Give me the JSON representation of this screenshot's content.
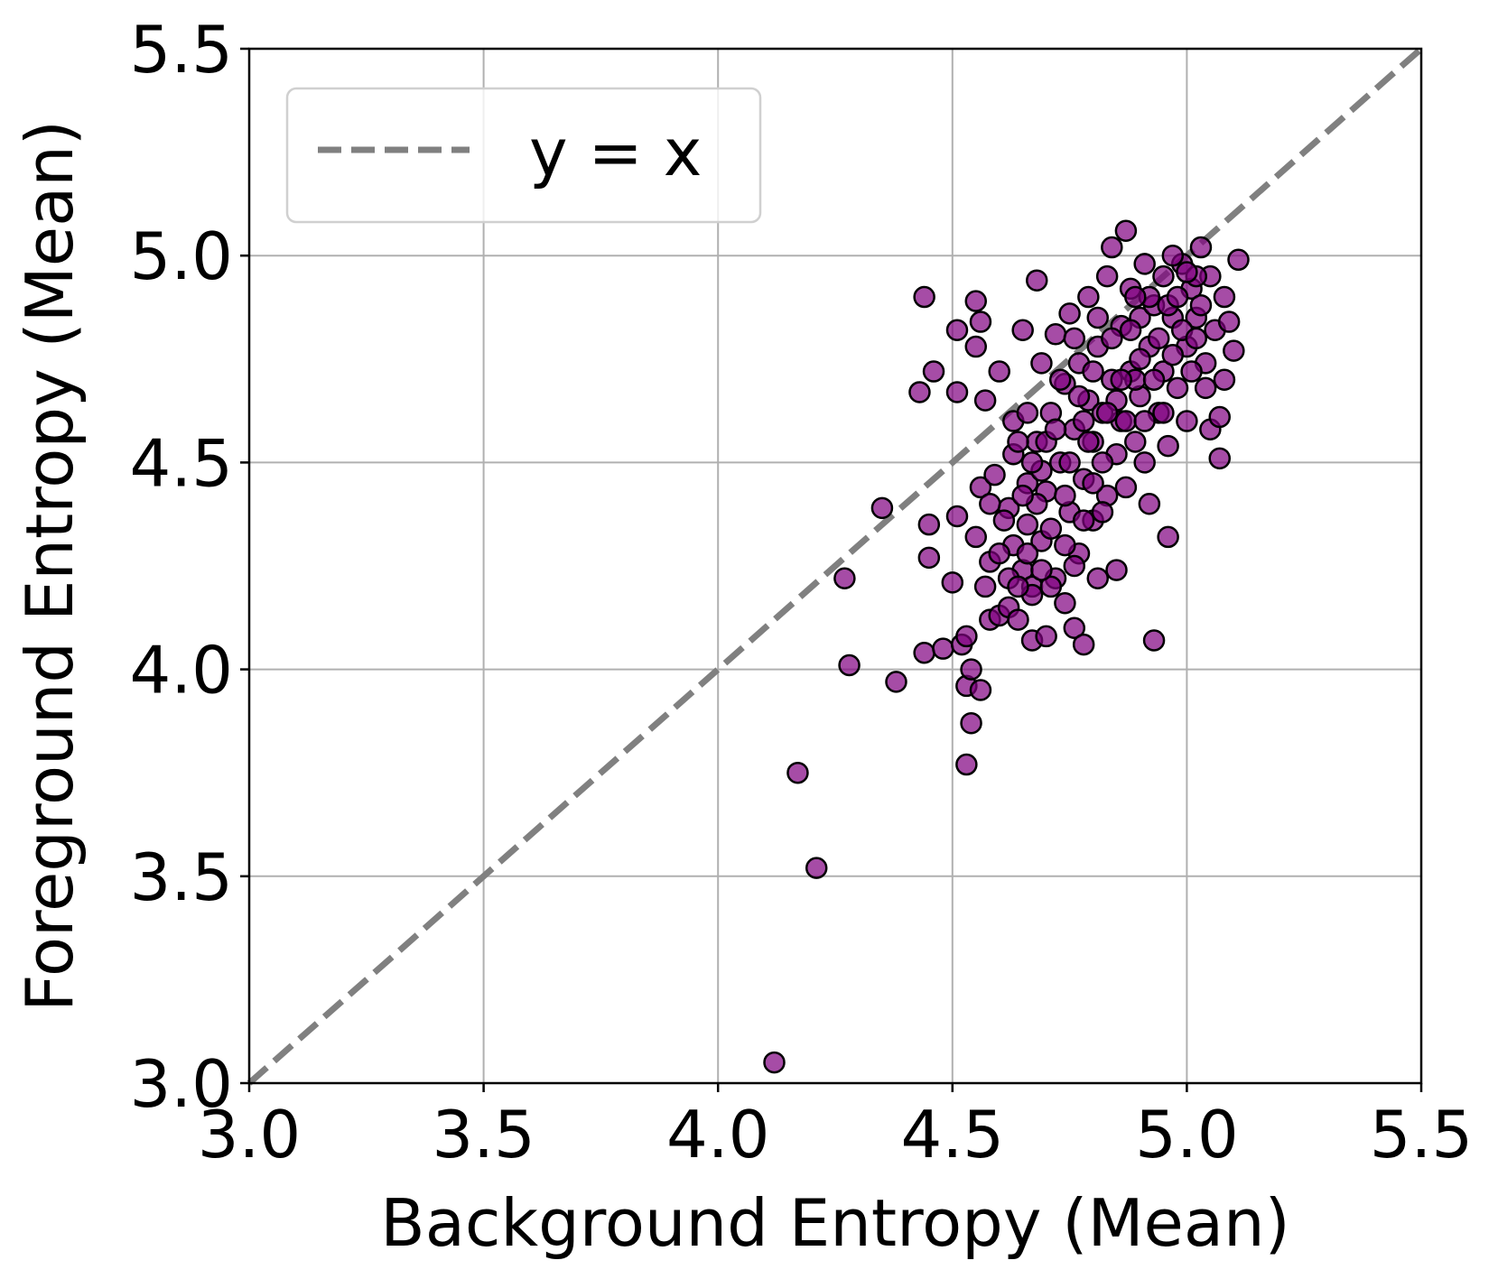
{
  "chart_data": {
    "type": "scatter",
    "title": "",
    "xlabel": "Background Entropy (Mean)",
    "ylabel": "Foreground Entropy (Mean)",
    "xlim": [
      3.0,
      5.5
    ],
    "ylim": [
      3.0,
      5.5
    ],
    "xticks": [
      "3.0",
      "3.5",
      "4.0",
      "4.5",
      "5.0",
      "5.5"
    ],
    "yticks": [
      "3.0",
      "3.5",
      "4.0",
      "4.5",
      "5.0",
      "5.5"
    ],
    "grid": true,
    "legend": {
      "placement": "top-left",
      "entries": [
        "y = x"
      ]
    },
    "reference_line": {
      "label": "y = x",
      "style": "dashed",
      "color": "#808080"
    },
    "marker_color": "#800080",
    "marker_edge_color": "#000000",
    "series": [
      {
        "points": [
          [
            4.12,
            3.05
          ],
          [
            4.17,
            3.75
          ],
          [
            4.21,
            3.52
          ],
          [
            4.27,
            4.22
          ],
          [
            4.28,
            4.01
          ],
          [
            4.35,
            4.39
          ],
          [
            4.38,
            3.97
          ],
          [
            4.43,
            4.67
          ],
          [
            4.44,
            4.04
          ],
          [
            4.44,
            4.9
          ],
          [
            4.45,
            4.35
          ],
          [
            4.45,
            4.27
          ],
          [
            4.46,
            4.72
          ],
          [
            4.48,
            4.05
          ],
          [
            4.5,
            4.21
          ],
          [
            4.51,
            4.37
          ],
          [
            4.51,
            4.67
          ],
          [
            4.51,
            4.82
          ],
          [
            4.52,
            4.06
          ],
          [
            4.53,
            3.96
          ],
          [
            4.53,
            4.08
          ],
          [
            4.53,
            3.77
          ],
          [
            4.54,
            4.0
          ],
          [
            4.54,
            3.87
          ],
          [
            4.55,
            4.78
          ],
          [
            4.55,
            4.89
          ],
          [
            4.56,
            3.95
          ],
          [
            4.56,
            4.44
          ],
          [
            4.56,
            4.84
          ],
          [
            4.57,
            4.65
          ],
          [
            4.58,
            4.26
          ],
          [
            4.58,
            4.12
          ],
          [
            4.6,
            4.13
          ],
          [
            4.6,
            4.72
          ],
          [
            4.62,
            4.15
          ],
          [
            4.62,
            4.39
          ],
          [
            4.63,
            4.52
          ],
          [
            4.63,
            4.6
          ],
          [
            4.64,
            4.12
          ],
          [
            4.65,
            4.82
          ],
          [
            4.65,
            4.24
          ],
          [
            4.66,
            4.45
          ],
          [
            4.66,
            4.35
          ],
          [
            4.67,
            4.07
          ],
          [
            4.67,
            4.2
          ],
          [
            4.68,
            4.94
          ],
          [
            4.68,
            4.55
          ],
          [
            4.69,
            4.31
          ],
          [
            4.69,
            4.74
          ],
          [
            4.7,
            4.08
          ],
          [
            4.7,
            4.43
          ],
          [
            4.71,
            4.62
          ],
          [
            4.72,
            4.81
          ],
          [
            4.72,
            4.22
          ],
          [
            4.73,
            4.5
          ],
          [
            4.74,
            4.16
          ],
          [
            4.74,
            4.69
          ],
          [
            4.75,
            4.38
          ],
          [
            4.75,
            4.86
          ],
          [
            4.76,
            4.1
          ],
          [
            4.76,
            4.58
          ],
          [
            4.77,
            4.28
          ],
          [
            4.77,
            4.74
          ],
          [
            4.78,
            4.06
          ],
          [
            4.78,
            4.46
          ],
          [
            4.79,
            4.65
          ],
          [
            4.79,
            4.9
          ],
          [
            4.8,
            4.36
          ],
          [
            4.8,
            4.55
          ],
          [
            4.81,
            4.22
          ],
          [
            4.81,
            4.78
          ],
          [
            4.82,
            4.62
          ],
          [
            4.83,
            4.42
          ],
          [
            4.83,
            4.95
          ],
          [
            4.84,
            4.7
          ],
          [
            4.84,
            5.02
          ],
          [
            4.85,
            4.24
          ],
          [
            4.85,
            4.52
          ],
          [
            4.86,
            4.83
          ],
          [
            4.86,
            4.6
          ],
          [
            4.87,
            4.44
          ],
          [
            4.87,
            5.06
          ],
          [
            4.88,
            4.92
          ],
          [
            4.88,
            4.72
          ],
          [
            4.89,
            4.55
          ],
          [
            4.9,
            4.85
          ],
          [
            4.9,
            4.66
          ],
          [
            4.91,
            4.98
          ],
          [
            4.91,
            4.5
          ],
          [
            4.92,
            4.4
          ],
          [
            4.92,
            4.78
          ],
          [
            4.93,
            4.88
          ],
          [
            4.93,
            4.07
          ],
          [
            4.94,
            4.62
          ],
          [
            4.95,
            4.95
          ],
          [
            4.95,
            4.72
          ],
          [
            4.96,
            4.54
          ],
          [
            4.96,
            4.32
          ],
          [
            4.97,
            4.85
          ],
          [
            4.98,
            4.68
          ],
          [
            4.99,
            4.98
          ],
          [
            5.0,
            4.78
          ],
          [
            5.0,
            4.6
          ],
          [
            5.01,
            4.92
          ],
          [
            5.02,
            4.85
          ],
          [
            5.03,
            5.02
          ],
          [
            5.04,
            4.74
          ],
          [
            5.05,
            4.95
          ],
          [
            5.05,
            4.58
          ],
          [
            5.06,
            4.82
          ],
          [
            5.07,
            4.61
          ],
          [
            5.07,
            4.51
          ],
          [
            5.08,
            4.7
          ],
          [
            5.08,
            4.9
          ],
          [
            5.09,
            4.84
          ],
          [
            5.1,
            4.77
          ],
          [
            5.11,
            4.99
          ],
          [
            4.59,
            4.47
          ],
          [
            4.61,
            4.36
          ],
          [
            4.64,
            4.55
          ],
          [
            4.66,
            4.62
          ],
          [
            4.68,
            4.4
          ],
          [
            4.7,
            4.55
          ],
          [
            4.71,
            4.34
          ],
          [
            4.73,
            4.7
          ],
          [
            4.75,
            4.5
          ],
          [
            4.76,
            4.8
          ],
          [
            4.78,
            4.6
          ],
          [
            4.8,
            4.72
          ],
          [
            4.82,
            4.5
          ],
          [
            4.84,
            4.8
          ],
          [
            4.85,
            4.65
          ],
          [
            4.87,
            4.6
          ],
          [
            4.88,
            4.82
          ],
          [
            4.89,
            4.7
          ],
          [
            4.9,
            4.75
          ],
          [
            4.92,
            4.9
          ],
          [
            4.94,
            4.8
          ],
          [
            4.96,
            4.88
          ],
          [
            4.97,
            4.76
          ],
          [
            4.98,
            4.9
          ],
          [
            4.99,
            4.82
          ],
          [
            5.01,
            4.72
          ],
          [
            5.02,
            4.95
          ],
          [
            5.03,
            4.88
          ],
          [
            5.04,
            4.68
          ],
          [
            4.74,
            4.42
          ],
          [
            4.72,
            4.58
          ],
          [
            4.69,
            4.48
          ],
          [
            4.67,
            4.5
          ],
          [
            4.65,
            4.42
          ],
          [
            4.63,
            4.3
          ],
          [
            4.62,
            4.22
          ],
          [
            4.6,
            4.28
          ],
          [
            4.58,
            4.4
          ],
          [
            4.57,
            4.2
          ],
          [
            4.55,
            4.32
          ],
          [
            4.86,
            4.7
          ],
          [
            4.83,
            4.62
          ],
          [
            4.81,
            4.85
          ],
          [
            4.79,
            4.55
          ],
          [
            4.77,
            4.66
          ],
          [
            4.93,
            4.7
          ],
          [
            4.95,
            4.62
          ],
          [
            4.91,
            4.6
          ],
          [
            4.89,
            4.9
          ],
          [
            4.97,
            5.0
          ],
          [
            5.0,
            4.96
          ],
          [
            5.02,
            4.8
          ],
          [
            4.8,
            4.45
          ],
          [
            4.82,
            4.38
          ],
          [
            4.78,
            4.36
          ],
          [
            4.76,
            4.25
          ],
          [
            4.74,
            4.3
          ],
          [
            4.71,
            4.2
          ],
          [
            4.69,
            4.24
          ],
          [
            4.67,
            4.18
          ],
          [
            4.66,
            4.28
          ],
          [
            4.64,
            4.2
          ]
        ]
      }
    ]
  }
}
